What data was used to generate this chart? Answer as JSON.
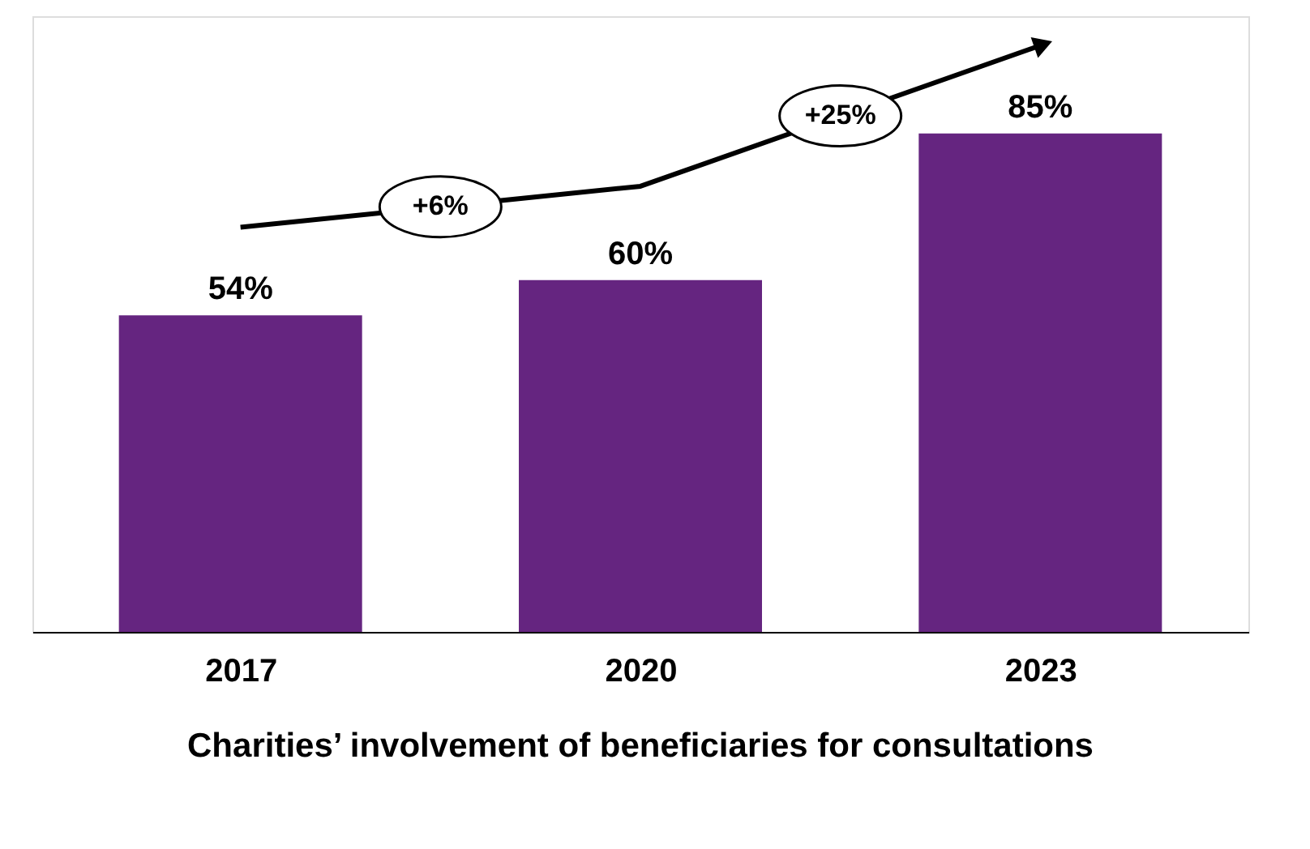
{
  "chart_data": {
    "type": "bar",
    "title": "Charities’ involvement of beneficiaries for consultations",
    "categories": [
      "2017",
      "2020",
      "2023"
    ],
    "series": [
      {
        "color": "#652580",
        "values": [
          54,
          60,
          85
        ],
        "value_labels": [
          "54%",
          "60%",
          "85%"
        ]
      },
      {
        "type": "line",
        "color": "#000000",
        "values": [
          69,
          76,
          100
        ],
        "marker": "none"
      }
    ],
    "annotations": [
      "+6%",
      "+25%"
    ],
    "grid": false
  }
}
